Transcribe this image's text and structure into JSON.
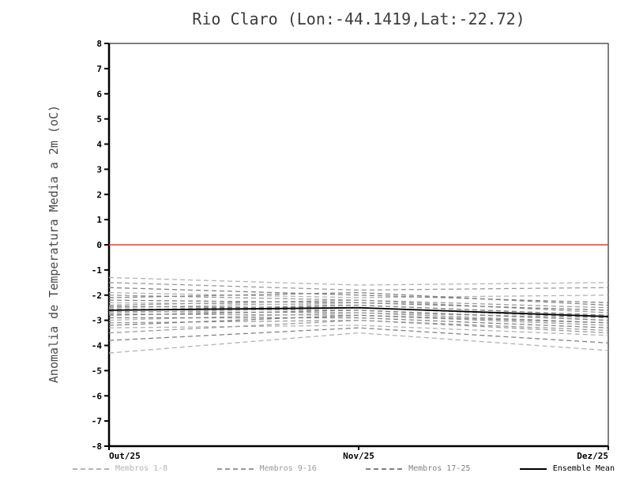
{
  "chart_data": {
    "type": "line",
    "title": "Rio Claro (Lon:-44.1419,Lat:-22.72)",
    "ylabel": "Anomalia de Temperatura Media a 2m (oC)",
    "xlabel": "",
    "categories": [
      "Out/25",
      "Nov/25",
      "Dez/25"
    ],
    "ylim": [
      -8,
      8
    ],
    "ytick_step": 1,
    "grid": false,
    "zero_line": {
      "value": 0,
      "color": "#f0382e"
    },
    "groups": [
      {
        "name": "Membros 1-8",
        "color": "#b3b3b3",
        "style": "dashed",
        "members": [
          [
            -1.3,
            -1.6,
            -1.5
          ],
          [
            -1.9,
            -2.1,
            -2.0
          ],
          [
            -2.3,
            -2.4,
            -2.8
          ],
          [
            -2.5,
            -2.3,
            -2.6
          ],
          [
            -2.7,
            -2.5,
            -2.9
          ],
          [
            -3.0,
            -2.7,
            -2.9
          ],
          [
            -3.3,
            -3.2,
            -3.6
          ],
          [
            -4.3,
            -3.5,
            -4.2
          ]
        ]
      },
      {
        "name": "Membros 9-16",
        "color": "#9a9a9a",
        "style": "dashed",
        "members": [
          [
            -1.5,
            -1.8,
            -1.7
          ],
          [
            -2.0,
            -2.2,
            -2.5
          ],
          [
            -2.4,
            -2.2,
            -2.7
          ],
          [
            -2.55,
            -2.6,
            -3.0
          ],
          [
            -2.65,
            -2.7,
            -3.1
          ],
          [
            -2.75,
            -2.8,
            -3.2
          ],
          [
            -3.1,
            -3.0,
            -3.5
          ],
          [
            -3.5,
            -3.0,
            -3.4
          ]
        ]
      },
      {
        "name": "Membros 17-25",
        "color": "#828282",
        "style": "dashed",
        "members": [
          [
            -1.7,
            -2.0,
            -2.3
          ],
          [
            -2.1,
            -1.9,
            -2.4
          ],
          [
            -2.2,
            -2.3,
            -2.6
          ],
          [
            -2.45,
            -2.5,
            -2.9
          ],
          [
            -2.6,
            -2.4,
            -2.8
          ],
          [
            -2.8,
            -2.6,
            -3.0
          ],
          [
            -2.9,
            -2.9,
            -3.3
          ],
          [
            -3.2,
            -2.8,
            -3.1
          ],
          [
            -3.8,
            -3.3,
            -3.9
          ]
        ]
      }
    ],
    "mean": {
      "name": "Ensemble Mean",
      "color": "#000000",
      "values": [
        -2.6,
        -2.5,
        -2.85
      ]
    },
    "legend": [
      {
        "label": "Membros 1-8",
        "color": "#b3b3b3",
        "dashed": true
      },
      {
        "label": "Membros 9-16",
        "color": "#9a9a9a",
        "dashed": true
      },
      {
        "label": "Membros 17-25",
        "color": "#828282",
        "dashed": true
      },
      {
        "label": "Ensemble Mean",
        "color": "#000000",
        "dashed": false
      }
    ]
  }
}
